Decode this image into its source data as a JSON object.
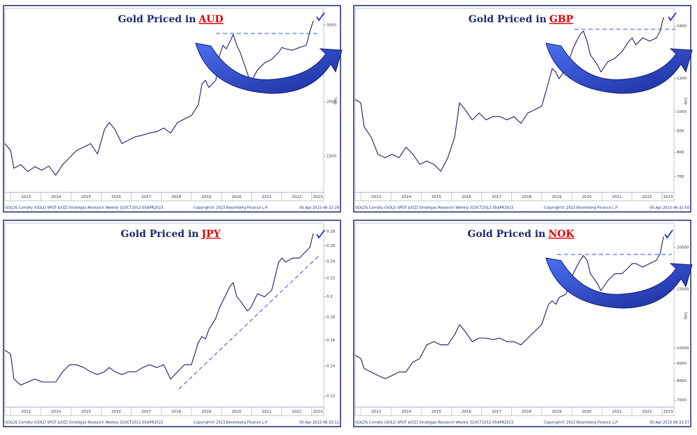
{
  "chart_data": [
    {
      "type": "line",
      "title": "Gold Priced in",
      "title_highlight": "AUD",
      "color": "#1a1f5c",
      "log_scale": true,
      "axis_label": "Log",
      "x": [
        2012.8,
        2012.99,
        2013.1,
        2013.33,
        2013.56,
        2013.8,
        2014.03,
        2014.26,
        2014.49,
        2014.72,
        2014.95,
        2015.18,
        2015.42,
        2015.65,
        2015.88,
        2016.11,
        2016.27,
        2016.46,
        2016.69,
        2016.92,
        2017.15,
        2017.38,
        2017.61,
        2017.85,
        2018.08,
        2018.31,
        2018.54,
        2018.77,
        2019.0,
        2019.23,
        2019.35,
        2019.47,
        2019.58,
        2019.81,
        2019.93,
        2020.05,
        2020.16,
        2020.28,
        2020.39,
        2020.51,
        2020.62,
        2020.86,
        2020.97,
        2021.2,
        2021.43,
        2021.67,
        2021.9,
        2022.01,
        2022.13,
        2022.36,
        2022.59,
        2022.82,
        2022.94,
        2023.05
      ],
      "values": [
        1604,
        1546,
        1409,
        1436,
        1384,
        1420,
        1394,
        1425,
        1358,
        1436,
        1490,
        1546,
        1575,
        1604,
        1518,
        1728,
        1793,
        1728,
        1604,
        1635,
        1665,
        1677,
        1696,
        1709,
        1741,
        1696,
        1793,
        1827,
        1860,
        1967,
        2198,
        2239,
        2157,
        2239,
        2549,
        2695,
        2645,
        2746,
        2851,
        2695,
        2597,
        2323,
        2215,
        2367,
        2456,
        2503,
        2597,
        2664,
        2645,
        2625,
        2664,
        2695,
        2901,
        3067
      ],
      "xlim": [
        2012.8,
        2023.4
      ],
      "xticks": [
        2013,
        2014,
        2015,
        2016,
        2017,
        2018,
        2019,
        2020,
        2021,
        2022,
        2023
      ],
      "ylim": [
        1240,
        3250
      ],
      "yticks": [
        1500,
        2000,
        2500,
        3000
      ],
      "footer": {
        "source": "GOLDS Comdty (GOLD SPOT $/OZ) Strategas Research  Weekly 31OCT2012-05APR2023",
        "copyright": "Copyright© 2023 Bloomberg Finance L.P.",
        "timestamp": "05-Apr-2023 06:32:28"
      }
    },
    {
      "type": "line",
      "title": "Gold Priced in",
      "title_highlight": "GBP",
      "color": "#1a1f5c",
      "log_scale": true,
      "axis_label": "Log",
      "x": [
        2012.8,
        2012.99,
        2013.1,
        2013.33,
        2013.56,
        2013.8,
        2014.03,
        2014.26,
        2014.49,
        2014.72,
        2014.95,
        2015.18,
        2015.42,
        2015.65,
        2015.88,
        2016.11,
        2016.27,
        2016.46,
        2016.69,
        2016.92,
        2017.15,
        2017.38,
        2017.61,
        2017.85,
        2018.08,
        2018.31,
        2018.54,
        2018.77,
        2019.0,
        2019.23,
        2019.35,
        2019.47,
        2019.58,
        2019.81,
        2019.93,
        2020.05,
        2020.16,
        2020.28,
        2020.39,
        2020.51,
        2020.62,
        2020.86,
        2020.97,
        2021.2,
        2021.43,
        2021.67,
        2021.9,
        2022.01,
        2022.13,
        2022.36,
        2022.59,
        2022.82,
        2022.94,
        2023.05
      ],
      "values": [
        1070,
        1050,
        920,
        870,
        792,
        777,
        792,
        777,
        823,
        792,
        749,
        763,
        749,
        721,
        777,
        870,
        1050,
        1011,
        956,
        993,
        956,
        974,
        974,
        956,
        974,
        938,
        993,
        1011,
        1031,
        1176,
        1268,
        1244,
        1198,
        1268,
        1341,
        1419,
        1473,
        1530,
        1558,
        1473,
        1366,
        1292,
        1244,
        1316,
        1341,
        1392,
        1473,
        1501,
        1445,
        1501,
        1473,
        1501,
        1558,
        1680
      ],
      "xlim": [
        2012.8,
        2023.4
      ],
      "xticks": [
        2013,
        2014,
        2015,
        2016,
        2017,
        2018,
        2019,
        2020,
        2021,
        2022,
        2023
      ],
      "ylim": [
        642,
        1751
      ],
      "yticks": [
        700,
        800,
        900,
        1000,
        1200,
        1600
      ],
      "footer": {
        "source": "GOLDS Comdty (GOLD SPOT $/OZ) Strategas Research  Weekly 31OCT2012-05APR2023",
        "copyright": "Copyright© 2023 Bloomberg Finance L.P.",
        "timestamp": "05-Apr-2023 06:32:50"
      }
    },
    {
      "type": "line",
      "title": "Gold Priced in",
      "title_highlight": "JPY",
      "color": "#1a1f5c",
      "log_scale": true,
      "x": [
        2012.8,
        2012.99,
        2013.1,
        2013.33,
        2013.56,
        2013.8,
        2014.03,
        2014.26,
        2014.49,
        2014.72,
        2014.95,
        2015.18,
        2015.42,
        2015.65,
        2015.88,
        2016.11,
        2016.27,
        2016.46,
        2016.69,
        2016.92,
        2017.15,
        2017.38,
        2017.61,
        2017.85,
        2018.08,
        2018.31,
        2018.54,
        2018.77,
        2019.0,
        2019.23,
        2019.35,
        2019.47,
        2019.58,
        2019.81,
        2019.93,
        2020.05,
        2020.16,
        2020.28,
        2020.39,
        2020.51,
        2020.62,
        2020.86,
        2020.97,
        2021.2,
        2021.43,
        2021.67,
        2021.9,
        2022.01,
        2022.13,
        2022.36,
        2022.59,
        2022.82,
        2022.94,
        2023.05
      ],
      "values": [
        0.152,
        0.149,
        0.131,
        0.127,
        0.129,
        0.131,
        0.129,
        0.129,
        0.129,
        0.136,
        0.141,
        0.141,
        0.139,
        0.136,
        0.134,
        0.136,
        0.139,
        0.136,
        0.134,
        0.136,
        0.136,
        0.139,
        0.141,
        0.139,
        0.141,
        0.131,
        0.136,
        0.141,
        0.141,
        0.158,
        0.163,
        0.161,
        0.169,
        0.179,
        0.189,
        0.196,
        0.203,
        0.211,
        0.215,
        0.2,
        0.196,
        0.186,
        0.189,
        0.203,
        0.2,
        0.207,
        0.239,
        0.244,
        0.239,
        0.244,
        0.244,
        0.253,
        0.258,
        0.277
      ],
      "xlim": [
        2012.8,
        2023.4
      ],
      "xticks": [
        2013,
        2014,
        2015,
        2016,
        2017,
        2018,
        2019,
        2020,
        2021,
        2022,
        2023
      ],
      "ylim": [
        0.1134,
        0.29
      ],
      "yticks": [
        0.12,
        0.14,
        0.16,
        0.18,
        0.2,
        0.22,
        0.24,
        0.26,
        0.28
      ],
      "footer": {
        "source": "GOLDS Comdty (GOLD SPOT $/OZ) Strategas Research  Weekly 31OCT2012-05APR2023",
        "copyright": "Copyright© 2023 Bloomberg Finance L.P.",
        "timestamp": "05-Apr-2023 06:33:11"
      }
    },
    {
      "type": "line",
      "title": "Gold Priced in",
      "title_highlight": "NOK",
      "color": "#1a1f5c",
      "log_scale": true,
      "axis_label": "Log",
      "x": [
        2012.8,
        2012.99,
        2013.1,
        2013.33,
        2013.56,
        2013.8,
        2014.03,
        2014.26,
        2014.49,
        2014.72,
        2014.95,
        2015.18,
        2015.42,
        2015.65,
        2015.88,
        2016.11,
        2016.27,
        2016.46,
        2016.69,
        2016.92,
        2017.15,
        2017.38,
        2017.61,
        2017.85,
        2018.08,
        2018.31,
        2018.54,
        2018.77,
        2019.0,
        2019.23,
        2019.35,
        2019.47,
        2019.58,
        2019.81,
        2019.93,
        2020.05,
        2020.16,
        2020.28,
        2020.39,
        2020.51,
        2020.62,
        2020.86,
        2020.97,
        2021.2,
        2021.43,
        2021.67,
        2021.9,
        2022.01,
        2022.13,
        2022.36,
        2022.59,
        2022.82,
        2022.94,
        2023.05
      ],
      "values": [
        9540,
        9320,
        8700,
        8500,
        8300,
        8120,
        8300,
        8500,
        8500,
        9110,
        9320,
        10240,
        10470,
        10240,
        10240,
        10980,
        11770,
        11230,
        10470,
        10730,
        10730,
        10620,
        10730,
        10470,
        10470,
        10240,
        10730,
        11230,
        11770,
        13530,
        13850,
        13530,
        14180,
        14510,
        15560,
        16690,
        17470,
        18310,
        18910,
        18310,
        16690,
        15560,
        14850,
        15920,
        16690,
        16690,
        17470,
        17890,
        17890,
        17470,
        17890,
        18310,
        19180,
        21540
      ],
      "xlim": [
        2012.8,
        2023.4
      ],
      "xticks": [
        2013,
        2014,
        2015,
        2016,
        2017,
        2018,
        2019,
        2020,
        2021,
        2022,
        2023
      ],
      "ylim": [
        6680,
        23400
      ],
      "yticks": [
        7000,
        8000,
        9000,
        10000,
        15000,
        20000
      ],
      "footer": {
        "source": "GOLDS Comdty (GOLD SPOT $/OZ) Strategas Research  Weekly 31OCT2012-05APR2023",
        "copyright": "Copyright© 2023 Bloomberg Finance L.P.",
        "timestamp": "05-Apr-2023 06:33:37"
      }
    }
  ]
}
